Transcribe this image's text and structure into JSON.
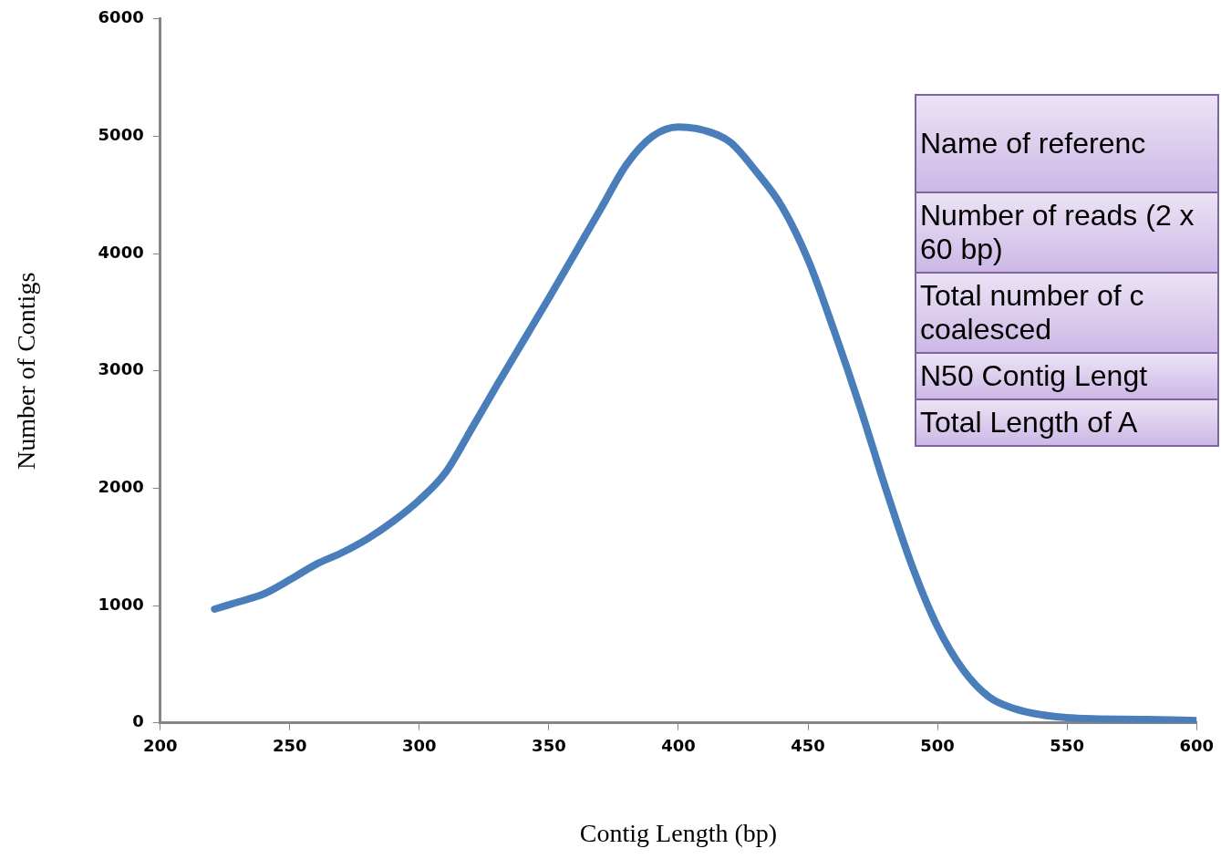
{
  "chart_data": {
    "type": "line",
    "xlabel": "Contig Length (bp)",
    "ylabel": "Number of Contigs",
    "x": [
      221,
      230,
      240,
      250,
      260,
      270,
      280,
      290,
      300,
      310,
      320,
      330,
      340,
      350,
      360,
      370,
      380,
      390,
      400,
      410,
      420,
      430,
      440,
      450,
      460,
      470,
      480,
      490,
      500,
      510,
      520,
      530,
      540,
      550,
      560,
      580,
      600
    ],
    "series": [
      {
        "color": "#4a7ebb",
        "values": [
          970,
          1030,
          1100,
          1220,
          1350,
          1450,
          1570,
          1720,
          1900,
          2130,
          2500,
          2880,
          3250,
          3620,
          4000,
          4380,
          4760,
          5000,
          5080,
          5050,
          4950,
          4700,
          4400,
          3950,
          3350,
          2700,
          2000,
          1350,
          820,
          450,
          220,
          120,
          70,
          45,
          35,
          30,
          20
        ]
      }
    ],
    "xlim": [
      200,
      600
    ],
    "xticks": [
      200,
      250,
      300,
      350,
      400,
      450,
      500,
      550,
      600
    ],
    "ylim": [
      0,
      6000
    ],
    "yticks": [
      0,
      1000,
      2000,
      3000,
      4000,
      5000,
      6000
    ],
    "grid": false,
    "legend": false,
    "marker": "none",
    "line_style": "solid",
    "annotations": [
      "Name of referenc",
      "Number of reads (2 x 60 bp)",
      "Total number of c coalesced",
      "N50 Contig Lengt",
      "Total Length of A"
    ]
  }
}
